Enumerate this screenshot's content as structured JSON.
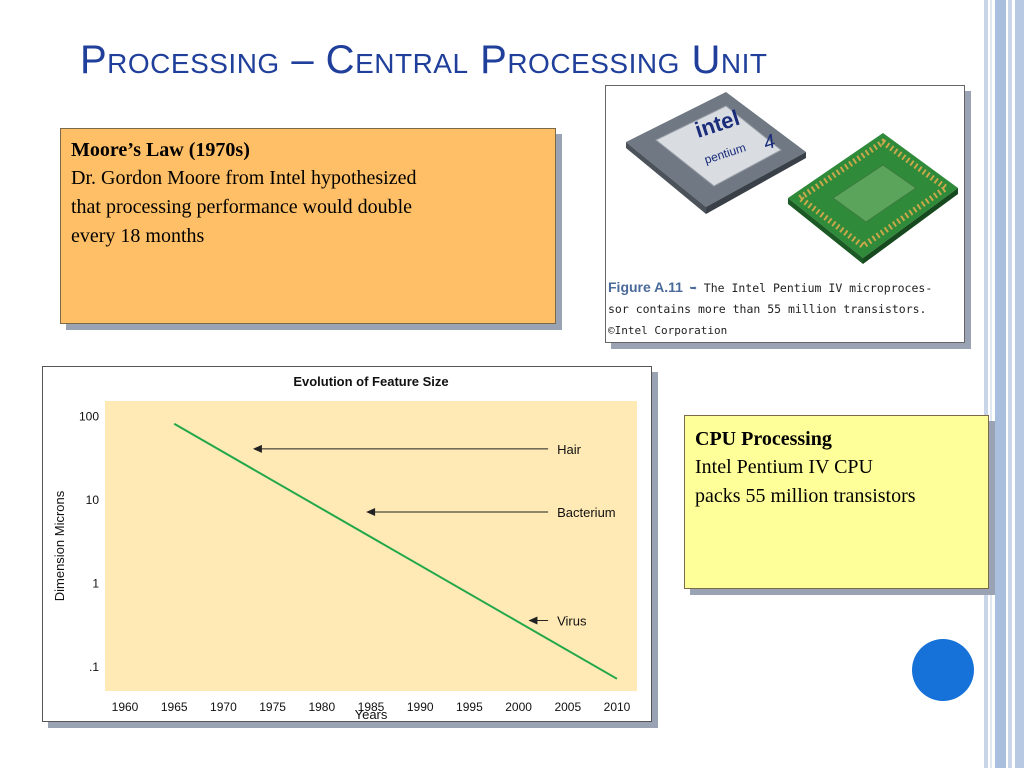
{
  "slide": {
    "title": "Processing – Central Processing Unit"
  },
  "moore_box": {
    "heading": "Moore’s Law (1970s)",
    "lines": [
      "Dr. Gordon Moore from Intel hypothesized",
      "that processing performance would double",
      "every 18 months"
    ]
  },
  "cpu_box": {
    "heading": "CPU Processing",
    "lines": [
      "Intel Pentium IV CPU",
      "packs 55 million transistors"
    ]
  },
  "photo": {
    "chip_brand": "intel",
    "chip_model": "pentium",
    "chip_number": "4",
    "caption_figure": "Figure A.11",
    "caption_arrow": "➥",
    "caption_line1": "The Intel Pentium IV microproces-",
    "caption_line2": "sor contains more than 55 million transistors.",
    "caption_credit": "©Intel Corporation"
  },
  "colors": {
    "title": "#1f3f9b",
    "moore_fill": "#ffbf66",
    "cpu_fill": "#ffff99",
    "plot_bg": "#ffeab5",
    "line": "#22a84a",
    "circle": "#1672d8"
  },
  "chart_data": {
    "type": "line",
    "title": "Evolution of Feature Size",
    "xlabel": "Years",
    "ylabel": "Dimension Microns",
    "y_scale": "log",
    "x_ticks": [
      "1960",
      "1965",
      "1970",
      "1975",
      "1980",
      "1985",
      "1990",
      "1995",
      "2000",
      "2005",
      "2010"
    ],
    "y_ticks": [
      "100",
      "10",
      "1",
      ".1"
    ],
    "y_tick_values": [
      100,
      10,
      1,
      0.1
    ],
    "xlim": [
      1960,
      2010
    ],
    "ylim": [
      0.05,
      150
    ],
    "series": [
      {
        "x": [
          1965,
          2010
        ],
        "y": [
          80,
          0.07
        ]
      }
    ],
    "annotations": [
      {
        "label": "Hair",
        "x_from": 2003,
        "x_to": 1973,
        "y": 40
      },
      {
        "label": "Bacterium",
        "x_from": 2003,
        "x_to": 1984.5,
        "y": 7
      },
      {
        "label": "Virus",
        "x_from": 2003,
        "x_to": 2001,
        "y": 0.35
      }
    ],
    "grid": false
  }
}
